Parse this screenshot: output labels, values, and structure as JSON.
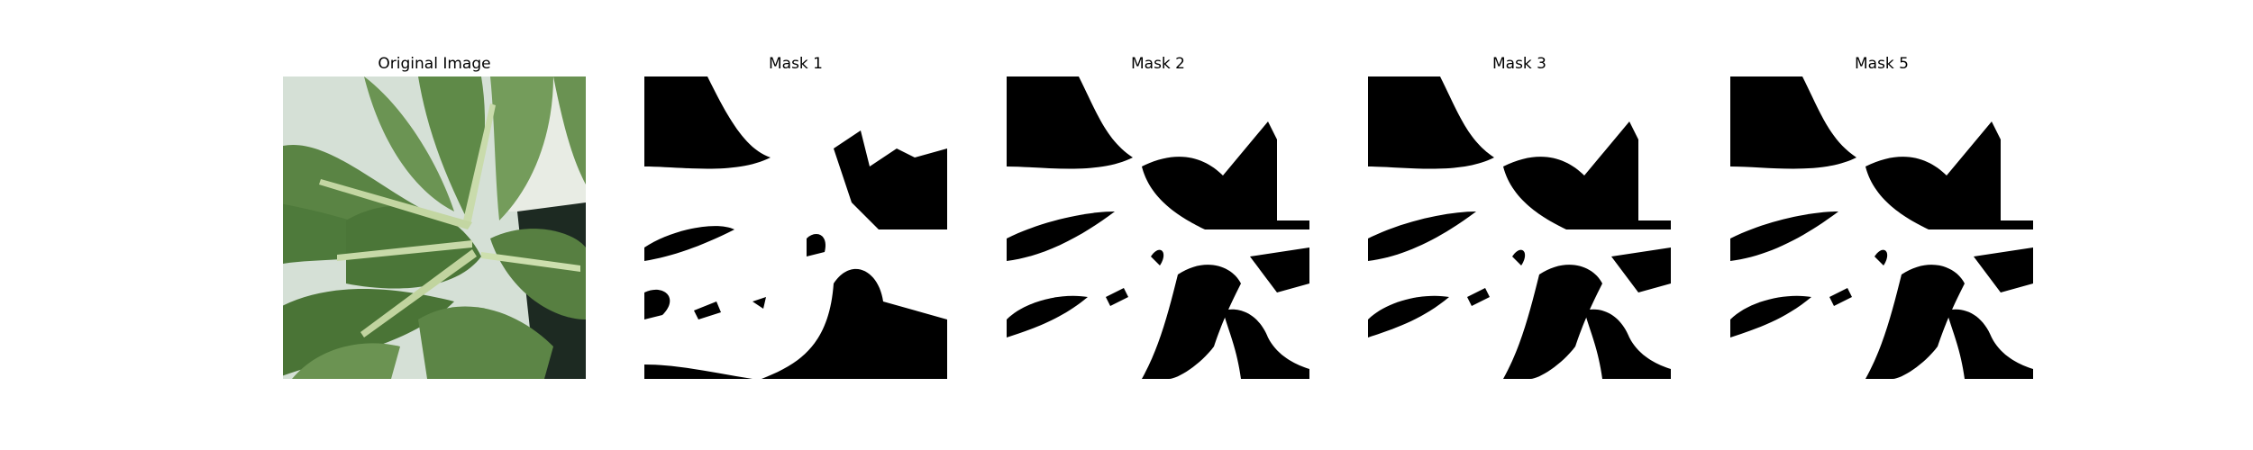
{
  "panels": [
    {
      "title": "Original Image",
      "kind": "photo",
      "subject": "green-leafy-plant-photo"
    },
    {
      "title": "Mask 1",
      "kind": "mask"
    },
    {
      "title": "Mask 2",
      "kind": "mask"
    },
    {
      "title": "Mask 3",
      "kind": "mask"
    },
    {
      "title": "Mask 5",
      "kind": "mask"
    }
  ],
  "colors": {
    "background": "#ffffff",
    "mask_foreground": "#ffffff",
    "mask_background": "#000000",
    "leaf_dark": "#4f7a3a",
    "leaf_mid": "#6f9556",
    "leaf_light": "#9ebf85",
    "stem": "#c7d9a6",
    "photo_background": "#d8e2d8"
  }
}
